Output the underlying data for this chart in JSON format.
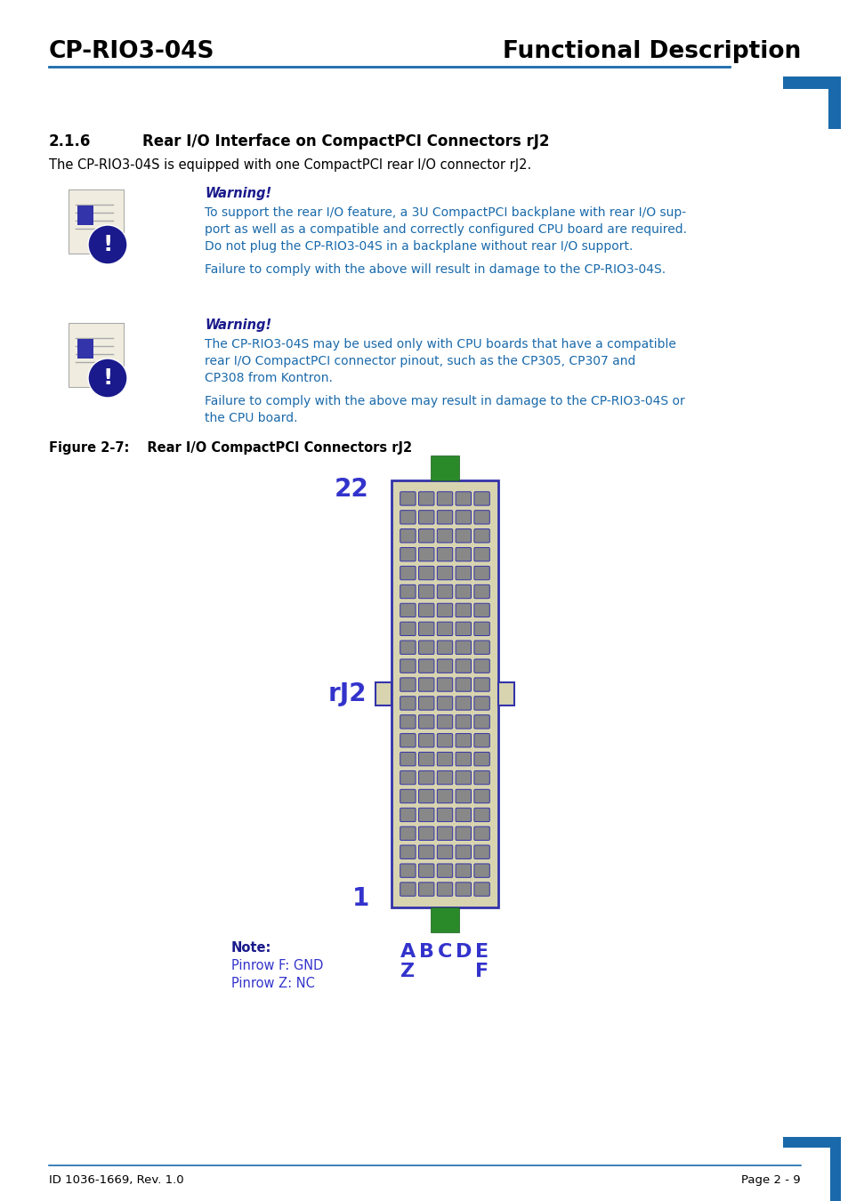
{
  "title_left": "CP-RIO3-04S",
  "title_right": "Functional Description",
  "header_line_color": "#1a6aab",
  "section_number": "2.1.6",
  "section_title": "Rear I/O Interface on CompactPCI Connectors rJ2",
  "intro_text": "The CP-RIO3-04S is equipped with one CompactPCI rear I/O connector rJ2.",
  "warning1_title": "Warning!",
  "warning1_body_line1": "To support the rear I/O feature, a 3U CompactPCI backplane with rear I/O sup-",
  "warning1_body_line2": "port as well as a compatible and correctly configured CPU board are required.",
  "warning1_body_line3": "Do not plug the CP-RIO3-04S in a backplane without rear I/O support.",
  "warning1_footer": "Failure to comply with the above will result in damage to the CP-RIO3-04S.",
  "warning2_title": "Warning!",
  "warning2_body_line1": "The CP-RIO3-04S may be used only with CPU boards that have a compatible",
  "warning2_body_line2": "rear I/O CompactPCI connector pinout, such as the CP305, CP307 and",
  "warning2_body_line3": "CP308 from Kontron.",
  "warning2_footer_line1": "Failure to comply with the above may result in damage to the CP-RIO3-04S or",
  "warning2_footer_line2": "the CPU board.",
  "figure_label": "Figure 2-7:",
  "figure_title": "   Rear I/O CompactPCI Connectors rJ2",
  "footer_left": "ID 1036-1669, Rev. 1.0",
  "footer_right": "Page 2 - 9",
  "dark_blue": "#1a1a8c",
  "teal_blue": "#1a6aab",
  "connector_bg": "#d8d4b0",
  "connector_border": "#3333aa",
  "pin_bg": "#888888",
  "pin_border": "#3333aa",
  "green_color": "#2a8a2a",
  "label_color": "#3333cc",
  "num_rows": 22,
  "num_cols": 5,
  "note_bold": "Note:",
  "note_line1": "Pinrow F: GND",
  "note_line2": "Pinrow Z: NC",
  "col_labels": [
    "A",
    "B",
    "C",
    "D",
    "E"
  ],
  "col_label_z": "Z",
  "col_label_f": "F"
}
